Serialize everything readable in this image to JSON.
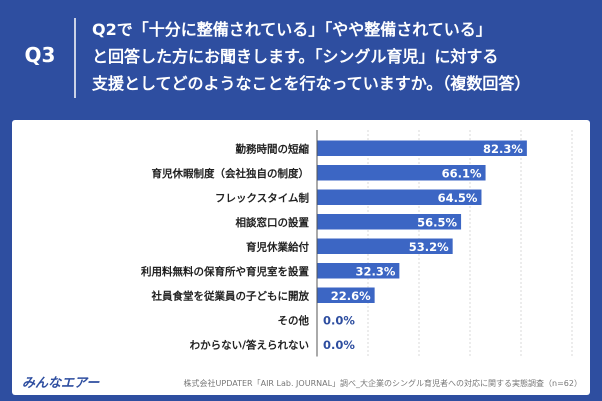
{
  "header": {
    "badge": "Q3",
    "question_lines": [
      "Q2で「十分に整備されている」「やや整備されている」",
      "と回答した方にお聞きします。「シングル育児」に対する",
      "支援としてどのようなことを行なっていますか。（複数回答）"
    ]
  },
  "footer": {
    "logo": "みんなエアー",
    "source": "株式会社UPDATER「AIR Lab. JOURNAL」調べ_大企業のシングル育児者への対応に関する実態調査（n=62）"
  },
  "colors": {
    "background": "#2e4ea0",
    "bar": "#3c66c4",
    "value_text": "#2e4ea0"
  },
  "chart_data": {
    "type": "bar",
    "orientation": "horizontal",
    "title": "Q2で「十分に整備されている」「やや整備されている」と回答した方にお聞きします。「シングル育児」に対する支援としてどのようなことを行なっていますか。（複数回答）",
    "categories": [
      "勤務時間の短縮",
      "育児休暇制度（会社独自の制度）",
      "フレックスタイム制",
      "相談窓口の設置",
      "育児休業給付",
      "利用料無料の保育所や育児室を設置",
      "社員食堂を従業員の子どもに開放",
      "その他",
      "わからない/答えられない"
    ],
    "values": [
      82.3,
      66.1,
      64.5,
      56.5,
      53.2,
      32.3,
      22.6,
      0.0,
      0.0
    ],
    "value_labels": [
      "82.3%",
      "66.1%",
      "64.5%",
      "56.5%",
      "53.2%",
      "32.3%",
      "22.6%",
      "0.0%",
      "0.0%"
    ],
    "unit": "%",
    "xlim": [
      0,
      100
    ],
    "grid": true
  }
}
